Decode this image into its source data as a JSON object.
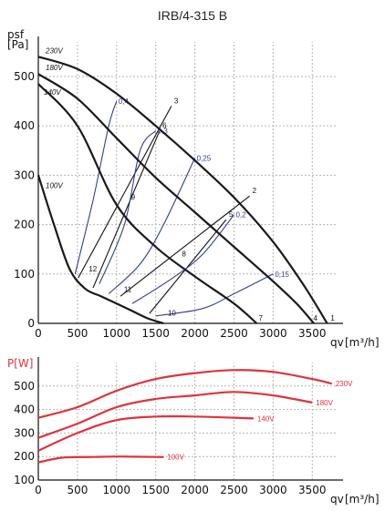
{
  "title": "IRB/4-315 B",
  "colors": {
    "pressure": "#1a1a1a",
    "efficiency": "#2f3e9e",
    "power": "#e0323a",
    "grid": "#b5b5b5"
  },
  "chart_data": [
    {
      "type": "line",
      "title": "IRB/4-315 B",
      "ylabel_top": "psf",
      "ylabel_unit": "[Pa]",
      "xlabel": "qv",
      "xlabel_unit": "[m³/h]",
      "xlim": [
        0,
        3800
      ],
      "ylim": [
        0,
        570
      ],
      "xticks": [
        0,
        500,
        1000,
        1500,
        2000,
        2500,
        3000,
        3500
      ],
      "yticks": [
        0,
        100,
        200,
        300,
        400,
        500
      ],
      "grid": true,
      "series": [
        {
          "name": "230V",
          "x": [
            0,
            500,
            1000,
            1500,
            2000,
            2500,
            3000,
            3400,
            3690
          ],
          "y": [
            540,
            515,
            465,
            400,
            330,
            255,
            165,
            75,
            0
          ]
        },
        {
          "name": "180V",
          "x": [
            0,
            500,
            1000,
            1500,
            2000,
            2500,
            3000,
            3300,
            3520
          ],
          "y": [
            505,
            455,
            375,
            295,
            225,
            155,
            85,
            40,
            0
          ]
        },
        {
          "name": "140V",
          "x": [
            0,
            500,
            1000,
            1500,
            2000,
            2500,
            2790
          ],
          "y": [
            485,
            400,
            240,
            155,
            95,
            40,
            0
          ]
        },
        {
          "name": "100V",
          "x": [
            0,
            200,
            400,
            600,
            800,
            1000,
            1200,
            1400,
            1600
          ],
          "y": [
            300,
            200,
            110,
            70,
            55,
            40,
            25,
            10,
            0
          ]
        }
      ],
      "efficiency_lines": [
        {
          "label": "0,4",
          "x": [
            470,
            700,
            900,
            1000
          ],
          "y": [
            100,
            250,
            400,
            450
          ]
        },
        {
          "label": "0,3",
          "x": [
            780,
            1100,
            1300,
            1500
          ],
          "y": [
            80,
            200,
            350,
            390
          ]
        },
        {
          "label": "0,25",
          "x": [
            900,
            1300,
            1600,
            2000
          ],
          "y": [
            60,
            120,
            200,
            335
          ]
        },
        {
          "label": "0,2",
          "x": [
            1200,
            1700,
            2100,
            2500
          ],
          "y": [
            40,
            90,
            140,
            220
          ]
        },
        {
          "label": "0,15",
          "x": [
            1500,
            2100,
            2500,
            3000
          ],
          "y": [
            15,
            30,
            60,
            100
          ]
        }
      ],
      "system_lines": [
        {
          "from": "12",
          "to": "3",
          "x": [
            510,
            1700
          ],
          "y": [
            92,
            440
          ]
        },
        {
          "from": "7",
          "to": "6",
          "x": [
            700,
            1550
          ],
          "y": [
            72,
            390
          ]
        },
        {
          "from": "11",
          "to": "2",
          "x": [
            1050,
            2700
          ],
          "y": [
            55,
            258
          ]
        },
        {
          "from": "10",
          "to": "5",
          "x": [
            1420,
            2400
          ],
          "y": [
            20,
            210
          ]
        }
      ],
      "points": [
        {
          "label": "1",
          "x": 3700,
          "y": 0
        },
        {
          "label": "2",
          "x": 2700,
          "y": 258
        },
        {
          "label": "3",
          "x": 1700,
          "y": 440
        },
        {
          "label": "4",
          "x": 3480,
          "y": 0
        },
        {
          "label": "5",
          "x": 2400,
          "y": 210
        },
        {
          "label": "6",
          "x": 1550,
          "y": 390
        },
        {
          "label": "7",
          "x": 2780,
          "y": 0
        },
        {
          "label": "8",
          "x": 1800,
          "y": 130
        },
        {
          "label": "9",
          "x": 1150,
          "y": 245
        },
        {
          "label": "10",
          "x": 1620,
          "y": 10
        },
        {
          "label": "11",
          "x": 1060,
          "y": 58
        },
        {
          "label": "12",
          "x": 610,
          "y": 100
        }
      ]
    },
    {
      "type": "line",
      "ylabel": "P[W]",
      "xlabel": "qv",
      "xlabel_unit": "[m³/h]",
      "xlim": [
        0,
        3800
      ],
      "ylim": [
        100,
        600
      ],
      "xticks": [
        0,
        500,
        1000,
        1500,
        2000,
        2500,
        3000,
        3500
      ],
      "yticks": [
        100,
        200,
        300,
        400,
        500
      ],
      "grid": true,
      "series": [
        {
          "name": "230V",
          "x": [
            0,
            500,
            1000,
            1500,
            2000,
            2500,
            3000,
            3500,
            3750
          ],
          "y": [
            365,
            410,
            480,
            530,
            555,
            568,
            560,
            530,
            510
          ]
        },
        {
          "name": "180V",
          "x": [
            0,
            500,
            1000,
            1500,
            2000,
            2500,
            3000,
            3500
          ],
          "y": [
            280,
            340,
            410,
            445,
            460,
            475,
            460,
            430
          ]
        },
        {
          "name": "140V",
          "x": [
            0,
            500,
            1000,
            1500,
            2000,
            2500,
            2750
          ],
          "y": [
            225,
            300,
            355,
            370,
            370,
            365,
            362
          ]
        },
        {
          "name": "100V",
          "x": [
            0,
            300,
            700,
            1000,
            1500,
            1600
          ],
          "y": [
            175,
            195,
            198,
            200,
            198,
            198
          ]
        }
      ]
    }
  ]
}
